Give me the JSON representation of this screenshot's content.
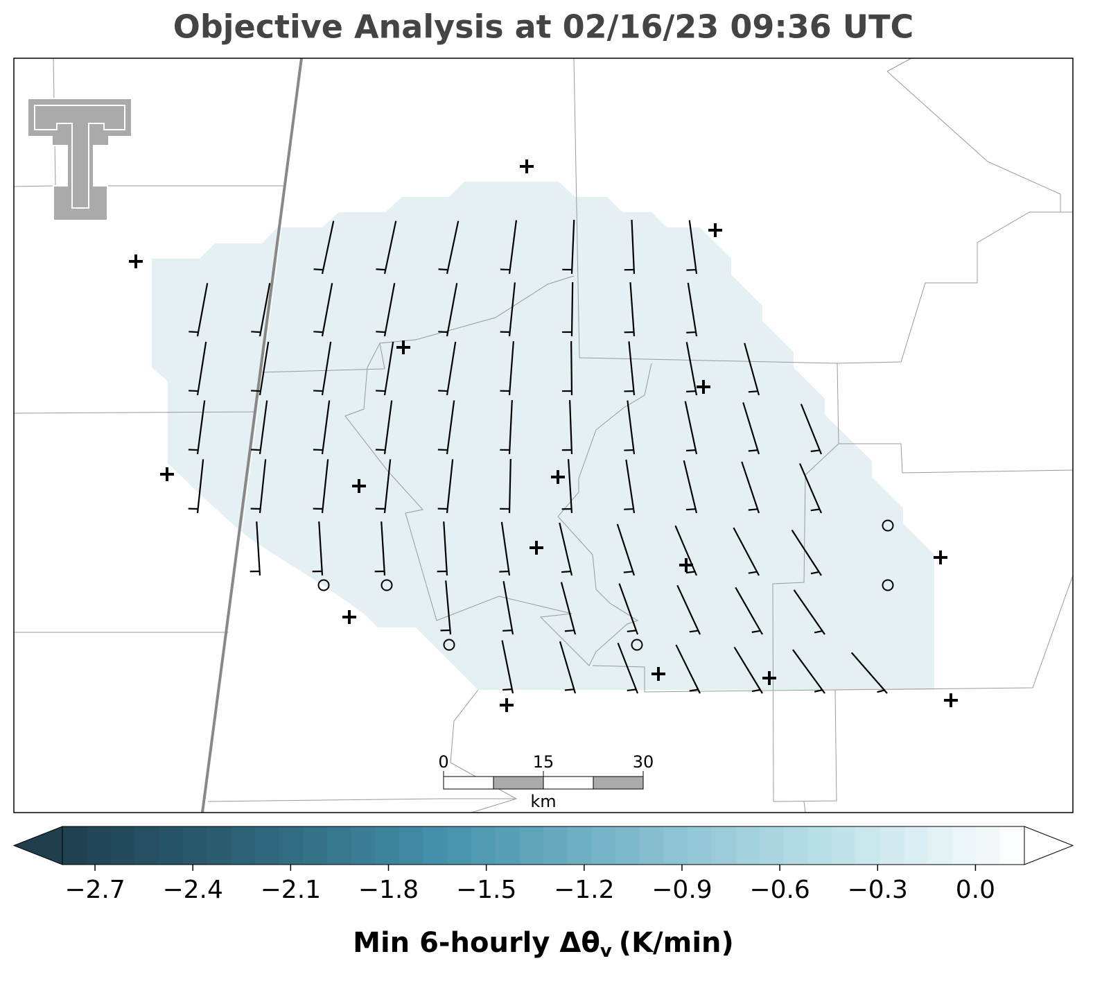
{
  "title": "Objective Analysis at 02/16/23 09:36 UTC",
  "scale_bar": {
    "ticks": [
      0,
      15,
      30
    ],
    "unit": "km"
  },
  "colorbar": {
    "lim": [
      -2.8,
      0.15
    ],
    "colors": [
      "#1f3f4f",
      "#2e6378",
      "#4592ac",
      "#82bccd",
      "#bde1e9",
      "#ffffff"
    ],
    "ticks": [
      {
        "value": -2.7,
        "label": "−2.7"
      },
      {
        "value": -2.4,
        "label": "−2.4"
      },
      {
        "value": -2.1,
        "label": "−2.1"
      },
      {
        "value": -1.8,
        "label": "−1.8"
      },
      {
        "value": -1.5,
        "label": "−1.5"
      },
      {
        "value": -1.2,
        "label": "−1.2"
      },
      {
        "value": -0.9,
        "label": "−0.9"
      },
      {
        "value": -0.6,
        "label": "−0.6"
      },
      {
        "value": -0.3,
        "label": "−0.3"
      },
      {
        "value": 0,
        "label": "0.0"
      }
    ],
    "label_main": "Min 6-hourly Δθ",
    "label_sub": "v",
    "label_unit": "(K/min)"
  }
}
